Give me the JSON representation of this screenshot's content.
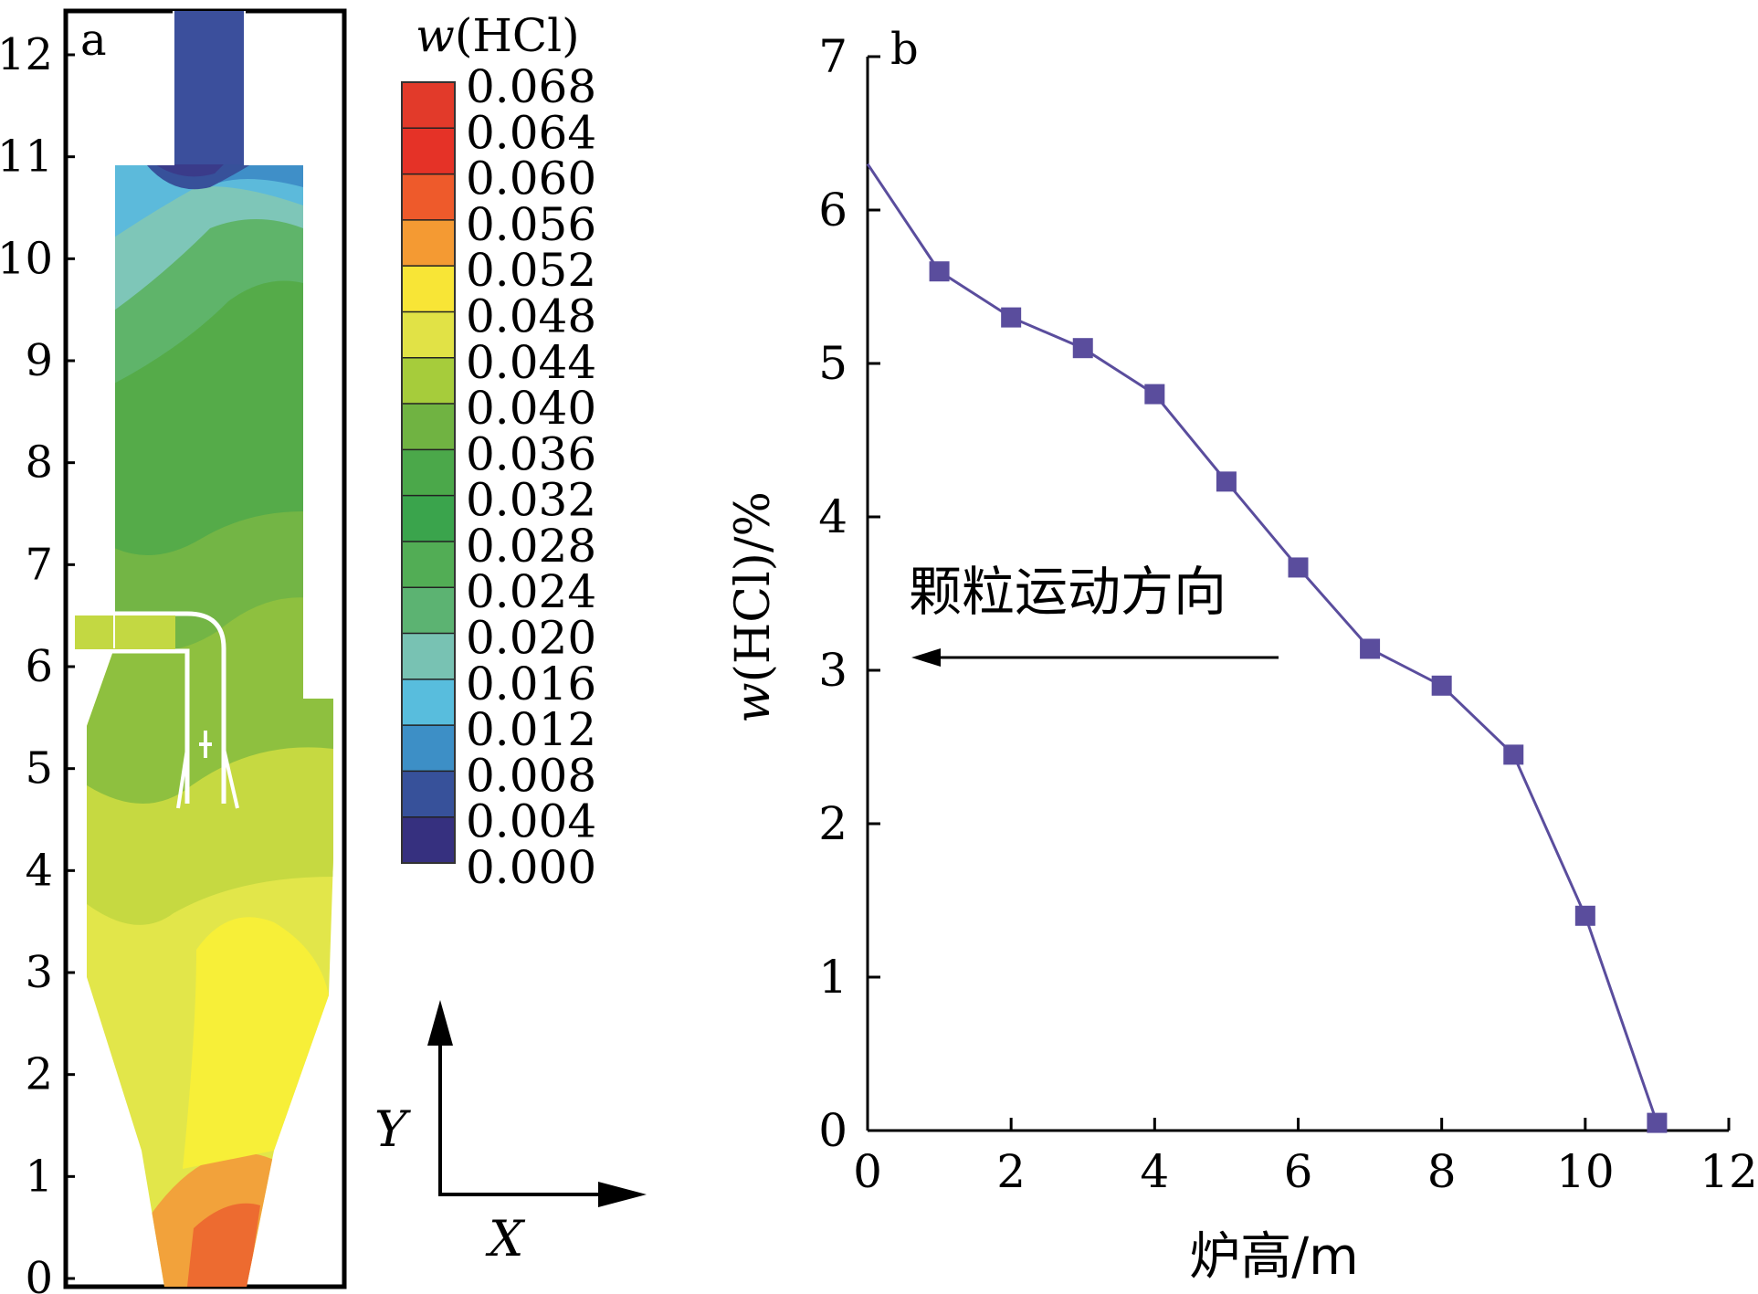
{
  "chart_data": [
    {
      "panel_label": "a",
      "type": "heatmap",
      "y_ticks": [
        "0",
        "1",
        "2",
        "3",
        "4",
        "5",
        "6",
        "7",
        "8",
        "9",
        "10",
        "11",
        "12"
      ],
      "colorbar": {
        "title_italic": "w",
        "title_rest": "(HCl)",
        "labels": [
          "0.068",
          "0.064",
          "0.060",
          "0.056",
          "0.052",
          "0.048",
          "0.044",
          "0.040",
          "0.036",
          "0.032",
          "0.028",
          "0.024",
          "0.020",
          "0.016",
          "0.012",
          "0.008",
          "0.004",
          "0.000"
        ],
        "colors": [
          "#e23a2a",
          "#e53227",
          "#ee5a2b",
          "#f49a33",
          "#f8e536",
          "#e1e246",
          "#a6cc3b",
          "#70b342",
          "#4ba84a",
          "#3aa44c",
          "#52ad55",
          "#5cb372",
          "#78c2b3",
          "#58bddd",
          "#3d8fc6",
          "#37519a",
          "#36307f"
        ]
      },
      "axes_legend": {
        "y_label": "Y",
        "x_label": "X"
      }
    },
    {
      "panel_label": "b",
      "type": "line",
      "xlabel": "炉高/m",
      "ylabel_italic": "w",
      "ylabel_rest": "(HCl)/%",
      "xlim": [
        0,
        12
      ],
      "ylim": [
        0,
        7
      ],
      "x_ticks": [
        0,
        2,
        4,
        6,
        8,
        10,
        12
      ],
      "y_ticks": [
        0,
        1,
        2,
        3,
        4,
        5,
        6,
        7
      ],
      "line_color": "#5a4d9d",
      "start_point": {
        "x": 0,
        "y": 6.3
      },
      "series": [
        {
          "x": [
            1,
            2,
            3,
            4,
            5,
            6,
            7,
            8,
            9,
            10,
            11
          ],
          "y": [
            5.6,
            5.3,
            5.1,
            4.8,
            4.23,
            3.67,
            3.14,
            2.9,
            2.45,
            1.4,
            0.05
          ]
        }
      ],
      "annotation": "颗粒运动方向"
    }
  ]
}
